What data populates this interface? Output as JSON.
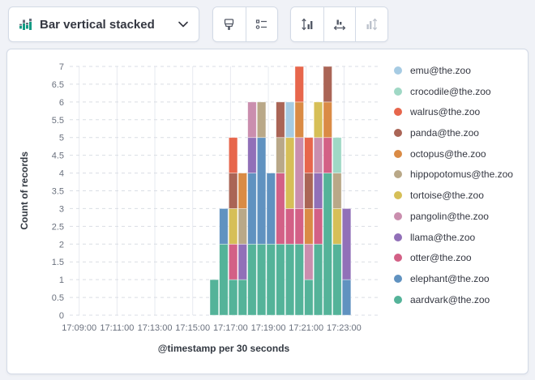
{
  "toolbar": {
    "chart_type_label": "Bar vertical stacked",
    "icons": [
      "bar-vertical-stacked-icon",
      "chevron-down-icon",
      "brush-icon",
      "legend-values-icon",
      "left-axis-icon",
      "bottom-axis-icon",
      "right-axis-icon"
    ],
    "right_axis_disabled": true
  },
  "chart": {
    "y_axis_title": "Count of records",
    "x_axis_title": "@timestamp per 30 seconds",
    "y_ticks": [
      "0",
      "0.5",
      "1",
      "1.5",
      "2",
      "2.5",
      "3",
      "3.5",
      "4",
      "4.5",
      "5",
      "5.5",
      "6",
      "6.5",
      "7"
    ],
    "x_ticks": [
      "17:09:00",
      "17:11:00",
      "17:13:00",
      "17:15:00",
      "17:17:00",
      "17:19:00",
      "17:21:00",
      "17:23:00"
    ]
  },
  "chart_data": {
    "type": "bar",
    "stacked": true,
    "orientation": "vertical",
    "title": "",
    "xlabel": "@timestamp per 30 seconds",
    "ylabel": "Count of records",
    "ylim": [
      0,
      7
    ],
    "grid": true,
    "legend_position": "right",
    "categories": [
      "17:16:00",
      "17:16:30",
      "17:17:00",
      "17:17:30",
      "17:18:00",
      "17:18:30",
      "17:19:00",
      "17:19:30",
      "17:20:00",
      "17:20:30",
      "17:21:00",
      "17:21:30",
      "17:22:00",
      "17:22:30",
      "17:23:00"
    ],
    "series": [
      {
        "name": "emu@the.zoo",
        "color": "#A6CBE3",
        "values": [
          0,
          0,
          0,
          0,
          0,
          0,
          0,
          0,
          1,
          0,
          0,
          0,
          0,
          0,
          0
        ]
      },
      {
        "name": "crocodile@the.zoo",
        "color": "#9FD8C5",
        "values": [
          0,
          0,
          0,
          0,
          0,
          0,
          0,
          0,
          0,
          0,
          0,
          0,
          0,
          1,
          0
        ]
      },
      {
        "name": "walrus@the.zoo",
        "color": "#E7664C",
        "values": [
          0,
          0,
          1,
          0,
          0,
          0,
          0,
          0,
          0,
          1,
          1,
          0,
          0,
          0,
          0
        ]
      },
      {
        "name": "panda@the.zoo",
        "color": "#AA6556",
        "values": [
          0,
          0,
          1,
          0,
          0,
          0,
          0,
          1,
          0,
          0,
          1,
          0,
          1,
          0,
          0
        ]
      },
      {
        "name": "octopus@the.zoo",
        "color": "#DA8B45",
        "values": [
          0,
          0,
          0,
          1,
          0,
          0,
          0,
          0,
          0,
          1,
          1,
          0,
          1,
          0,
          0
        ]
      },
      {
        "name": "hippopotomus@the.zoo",
        "color": "#B9A888",
        "values": [
          0,
          0,
          0,
          1,
          0,
          1,
          0,
          1,
          0,
          0,
          0,
          0,
          0,
          1,
          0
        ]
      },
      {
        "name": "tortoise@the.zoo",
        "color": "#D6BF57",
        "values": [
          0,
          0,
          1,
          0,
          0,
          0,
          0,
          0,
          2,
          0,
          0,
          1,
          0,
          1,
          0
        ]
      },
      {
        "name": "pangolin@the.zoo",
        "color": "#CA8EAE",
        "values": [
          0,
          0,
          0,
          0,
          1,
          0,
          0,
          0,
          0,
          2,
          1,
          1,
          0,
          0,
          0
        ]
      },
      {
        "name": "llama@the.zoo",
        "color": "#9170B8",
        "values": [
          0,
          0,
          0,
          1,
          1,
          0,
          0,
          0,
          0,
          0,
          0,
          1,
          0,
          0,
          2
        ]
      },
      {
        "name": "otter@the.zoo",
        "color": "#D36086",
        "values": [
          0,
          0,
          1,
          0,
          0,
          0,
          0,
          2,
          1,
          1,
          0,
          1,
          1,
          0,
          0
        ]
      },
      {
        "name": "elephant@the.zoo",
        "color": "#6092C0",
        "values": [
          0,
          1,
          0,
          0,
          2,
          3,
          2,
          0,
          0,
          0,
          0,
          0,
          0,
          0,
          1
        ]
      },
      {
        "name": "aardvark@the.zoo",
        "color": "#54B399",
        "values": [
          1,
          2,
          1,
          1,
          2,
          2,
          2,
          2,
          2,
          2,
          1,
          2,
          4,
          2,
          0
        ]
      }
    ],
    "note": "stack order is bottom-to-top reverse of series list (aardvark at bottom, emu on top)"
  }
}
